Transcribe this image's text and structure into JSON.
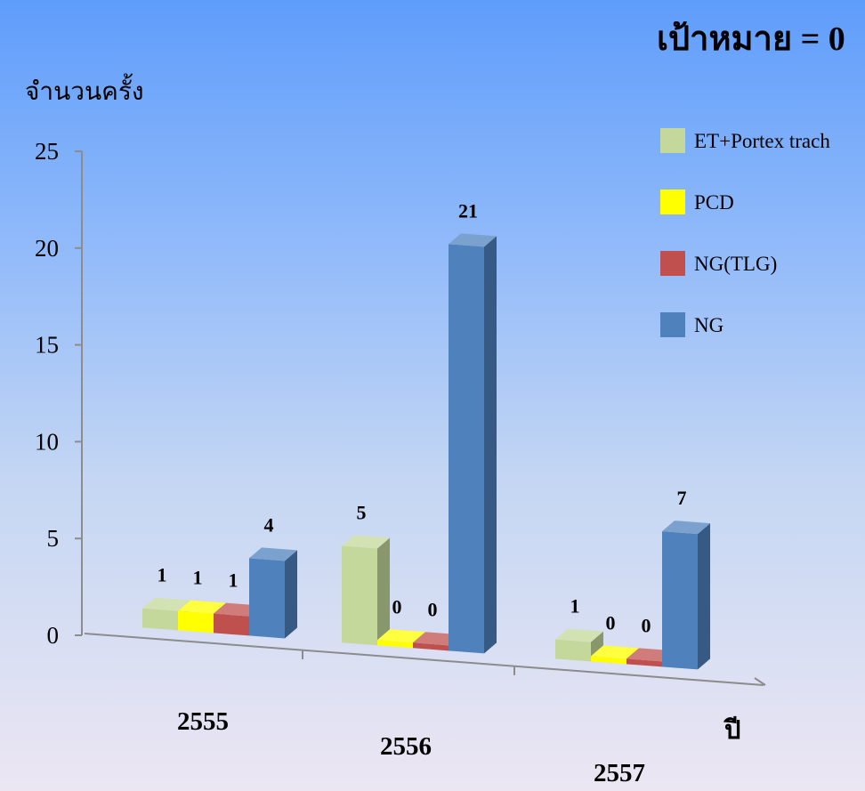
{
  "chart_data": {
    "type": "bar",
    "title": "เป้าหมาย = 0",
    "ylabel": "จำนวนครั้ง",
    "xlabel": "ปี",
    "categories": [
      "2555",
      "2556",
      "2557"
    ],
    "series": [
      {
        "name": "ET+Portex trach",
        "values": [
          1,
          5,
          1
        ],
        "color": "#c3d89a"
      },
      {
        "name": "PCD",
        "values": [
          1,
          0,
          0
        ],
        "color": "#ffff00"
      },
      {
        "name": "NG(TLG)",
        "values": [
          1,
          0,
          0
        ],
        "color": "#c0504d"
      },
      {
        "name": "NG",
        "values": [
          4,
          21,
          7
        ],
        "color": "#4f81bd"
      }
    ],
    "yticks": [
      "0",
      "5",
      "10",
      "15",
      "20",
      "25"
    ],
    "ylim": [
      0,
      25
    ],
    "legend_position": "right",
    "style": "3d-bar"
  }
}
